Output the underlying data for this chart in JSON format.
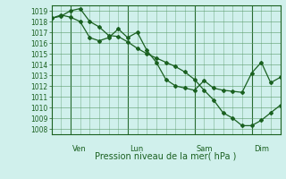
{
  "title": "",
  "xlabel": "Pression niveau de la mer( hPa )",
  "ylabel": "",
  "bg_color": "#d0f0ec",
  "grid_color": "#5a9a6a",
  "line_color": "#1a6020",
  "marker_color": "#1a6020",
  "ylim": [
    1007.5,
    1019.5
  ],
  "yticks": [
    1008,
    1009,
    1010,
    1011,
    1012,
    1013,
    1014,
    1015,
    1016,
    1017,
    1018,
    1019
  ],
  "day_labels": [
    "Ven",
    "Lun",
    "Sam",
    "Dim"
  ],
  "day_positions": [
    0.083,
    0.333,
    0.625,
    0.875
  ],
  "line1_x": [
    0.0,
    0.042,
    0.083,
    0.125,
    0.167,
    0.208,
    0.25,
    0.292,
    0.333,
    0.375,
    0.417,
    0.458,
    0.5,
    0.542,
    0.583,
    0.625,
    0.667,
    0.708,
    0.75,
    0.792,
    0.833,
    0.875,
    0.917,
    0.958,
    1.0
  ],
  "line1_y": [
    1018.3,
    1018.6,
    1018.4,
    1018.0,
    1016.5,
    1016.2,
    1016.5,
    1017.3,
    1016.5,
    1017.0,
    1015.3,
    1014.2,
    1012.6,
    1012.0,
    1011.8,
    1011.6,
    1012.5,
    1011.8,
    1011.6,
    1011.5,
    1011.4,
    1013.2,
    1014.2,
    1012.3,
    1012.8
  ],
  "line2_x": [
    0.0,
    0.042,
    0.083,
    0.125,
    0.167,
    0.208,
    0.25,
    0.292,
    0.333,
    0.375,
    0.417,
    0.458,
    0.5,
    0.542,
    0.583,
    0.625,
    0.667,
    0.708,
    0.75,
    0.792,
    0.833,
    0.875,
    0.917,
    0.958,
    1.0
  ],
  "line2_y": [
    1018.3,
    1018.5,
    1019.0,
    1019.2,
    1018.0,
    1017.5,
    1016.7,
    1016.6,
    1016.1,
    1015.5,
    1015.0,
    1014.6,
    1014.2,
    1013.8,
    1013.3,
    1012.6,
    1011.6,
    1010.7,
    1009.5,
    1009.0,
    1008.3,
    1008.3,
    1008.8,
    1009.5,
    1010.2
  ]
}
